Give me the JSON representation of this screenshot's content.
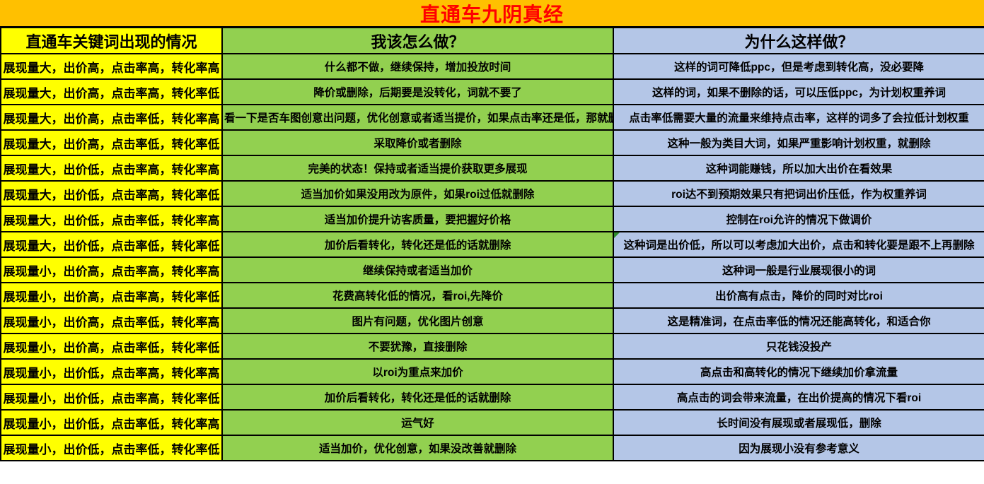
{
  "title": "直通车九阴真经",
  "colors": {
    "title_bg": "#FFC000",
    "title_text": "#FF0000",
    "condition_bg": "#FFFF00",
    "action_bg": "#92D050",
    "reason_bg": "#B4C6E7",
    "border": "#000000",
    "comment_marker": "#2E8B2E"
  },
  "table": {
    "headers": [
      {
        "label": "直通车关键词出现的情况"
      },
      {
        "label": "我该怎么做？"
      },
      {
        "label": "为什么这样做？"
      }
    ],
    "rows": [
      {
        "condition": "展现量大，出价高，点击率高，转化率高",
        "action": "什么都不做，继续保持，增加投放时间",
        "reason": "这样的词可降低ppc，但是考虑到转化高，没必要降"
      },
      {
        "condition": "展现量大，出价高，点击率高，转化率低",
        "action": "降价或删除，后期要是没转化，词就不要了",
        "reason": "这样的词，如果不删除的话，可以压低ppc，为计划权重养词"
      },
      {
        "condition": "展现量大，出价高，点击率低，转化率高",
        "action": "看一下是否车图创意出问题，优化创意或者适当提价，如果点击率还是低，那就删",
        "reason": "点击率低需要大量的流量来维持点击率，这样的词多了会拉低计划权重"
      },
      {
        "condition": "展现量大，出价高，点击率低，转化率低",
        "action": "采取降价或者删除",
        "reason": "这种一般为类目大词，如果严重影响计划权重，就删除"
      },
      {
        "condition": "展现量大，出价低，点击率高，转化率高",
        "action": "完美的状态！保持或者适当提价获取更多展现",
        "reason": "这种词能赚钱，所以加大出价在看效果"
      },
      {
        "condition": "展现量大，出价低，点击率高，转化率低",
        "action": "适当加价如果没用改为原件，如果roi过低就删除",
        "reason": "roi达不到预期效果只有把词出价压低，作为权重养词"
      },
      {
        "condition": "展现量大，出价低，点击率低，转化率高",
        "action": "适当加价提升访客质量，要把握好价格",
        "reason": "控制在roi允许的情况下做调价"
      },
      {
        "condition": "展现量大，出价低，点击率低，转化率低",
        "action": "加价后看转化，转化还是低的话就删除",
        "reason": "这种词是出价低，所以可以考虑加大出价，点击和转化要是跟不上再删除",
        "comment_marker": true
      },
      {
        "condition": "展现量小，出价高，点击率高，转化率高",
        "action": "继续保持或者适当加价",
        "reason": "这种词一般是行业展现很小的词"
      },
      {
        "condition": "展现量小，出价高，点击率高，转化率低",
        "action": "花费高转化低的情况，看roi,先降价",
        "reason": "出价高有点击，降价的同时对比roi"
      },
      {
        "condition": "展现量小，出价高，点击率低，转化率高",
        "action": "图片有问题，优化图片创意",
        "reason": "这是精准词，在点击率低的情况还能高转化，和适合你"
      },
      {
        "condition": "展现量小，出价高，点击率低，转化率低",
        "action": "不要犹豫，直接删除",
        "reason": "只花钱没投产"
      },
      {
        "condition": "展现量小，出价低，点击率高，转化率高",
        "action": "以roi为重点来加价",
        "reason": "高点击和高转化的情况下继续加价拿流量"
      },
      {
        "condition": "展现量小，出价低，点击率高，转化率低",
        "action": "加价后看转化，转化还是低的话就删除",
        "reason": "高点击的词会带来流量，在出价提高的情况下看roi"
      },
      {
        "condition": "展现量小，出价低，点击率低，转化率高",
        "action": "运气好",
        "reason": "长时间没有展现或者展现低，删除"
      },
      {
        "condition": "展现量小，出价低，点击率低，转化率低",
        "action": "适当加价，优化创意，如果没改善就删除",
        "reason": "因为展现小没有参考意义"
      }
    ]
  }
}
